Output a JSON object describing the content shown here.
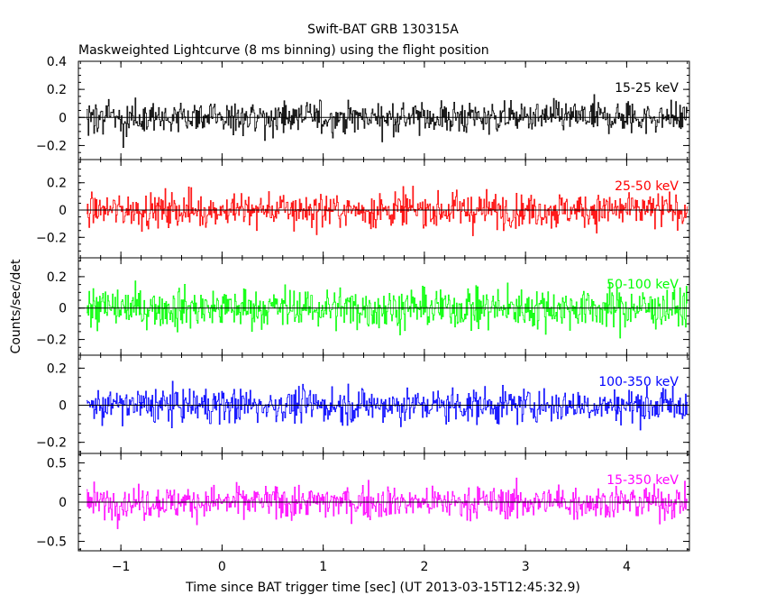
{
  "chart_data": {
    "type": "line",
    "title": "Swift-BAT GRB 130315A",
    "subtitle": "Maskweighted Lightcurve (8 ms binning) using the flight position",
    "xlabel": "Time since BAT trigger time [sec] (UT 2013-03-15T12:45:32.9)",
    "ylabel": "Counts/sec/det",
    "xlim": [
      -1.42,
      4.62
    ],
    "x_ticks": [
      -1,
      0,
      1,
      2,
      3,
      4
    ],
    "bin_width_sec": 0.008,
    "zero_line": true,
    "panels": [
      {
        "band": "15-25 keV",
        "color": "#000000",
        "ylim": [
          -0.3,
          0.4
        ],
        "yticks": [
          -0.2,
          0,
          0.2,
          0.4
        ],
        "amplitude": 0.08
      },
      {
        "band": "25-50 keV",
        "color": "#ff0000",
        "ylim": [
          -0.35,
          0.37
        ],
        "yticks": [
          -0.2,
          0,
          0.2
        ],
        "amplitude": 0.09
      },
      {
        "band": "50-100 keV",
        "color": "#00ff00",
        "ylim": [
          -0.3,
          0.32
        ],
        "yticks": [
          -0.2,
          0,
          0.2
        ],
        "amplitude": 0.09
      },
      {
        "band": "100-350 keV",
        "color": "#0000ff",
        "ylim": [
          -0.26,
          0.27
        ],
        "yticks": [
          -0.2,
          0,
          0.2
        ],
        "amplitude": 0.065
      },
      {
        "band": "15-350 keV",
        "color": "#ff00ff",
        "ylim": [
          -0.62,
          0.62
        ],
        "yticks": [
          -0.5,
          0,
          0.5
        ],
        "amplitude": 0.15
      }
    ]
  }
}
